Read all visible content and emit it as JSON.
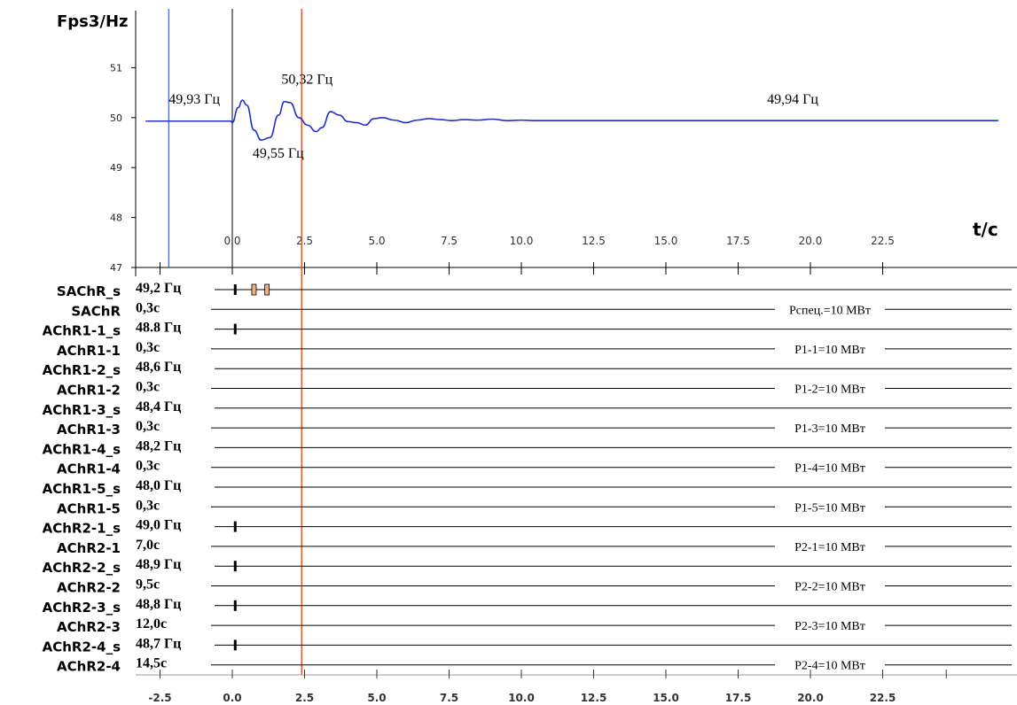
{
  "chart_data": {
    "type": "line",
    "title": "",
    "y_axis_title": "Fps3/Hz",
    "x_axis_title": "t/c",
    "ylim": [
      47,
      52
    ],
    "xlim": [
      -3.0,
      26.5
    ],
    "y_ticks": [
      "47",
      "48",
      "49",
      "50",
      "51"
    ],
    "x_ticks": [
      "-2.5",
      "0.0",
      "2.5",
      "5.0",
      "7.5",
      "10.0",
      "12.5",
      "15.0",
      "17.5",
      "20.0",
      "22.5"
    ],
    "x_tick_values": [
      -2.5,
      0,
      2.5,
      5,
      7.5,
      10,
      12.5,
      15,
      17.5,
      20,
      22.5
    ],
    "upper_tick_labels": [
      "0.0",
      "2.5",
      "5.0",
      "7.5",
      "10.0",
      "12.5",
      "15.0",
      "17.5",
      "20.0",
      "22.5"
    ],
    "grid": false,
    "legend": "none",
    "colors": {
      "series": "#1f2fd0",
      "marker_blue": "#3a5fe0",
      "marker_red": "#e05020",
      "marker_black": "#000000",
      "relay_box": "#f0b080"
    },
    "series": [
      {
        "x": [
          -3.0,
          -0.05,
          0.0,
          0.2,
          0.35,
          0.5,
          0.75,
          1.0,
          1.3,
          1.6,
          1.8,
          2.0,
          2.3,
          2.6,
          2.9,
          3.1,
          3.4,
          3.7,
          4.0,
          4.3,
          4.6,
          4.9,
          5.2,
          5.6,
          6.0,
          6.4,
          6.8,
          7.2,
          7.6,
          8.0,
          8.5,
          9.0,
          9.5,
          10.0,
          10.5,
          26.5
        ],
        "y": [
          49.93,
          49.93,
          49.9,
          50.2,
          50.35,
          50.25,
          49.75,
          49.55,
          49.6,
          50.05,
          50.32,
          50.3,
          50.0,
          49.85,
          49.72,
          49.8,
          50.12,
          50.05,
          49.92,
          49.9,
          49.85,
          49.98,
          50.0,
          49.95,
          49.9,
          49.95,
          49.98,
          49.96,
          49.94,
          49.96,
          49.95,
          49.97,
          49.94,
          49.95,
          49.94,
          49.94
        ]
      }
    ],
    "markers": {
      "blue_x": -2.2,
      "black_x": 0.0,
      "red_x": 2.4
    },
    "annotations": [
      {
        "text": "49,93 Гц",
        "x": -2.2,
        "y": 50.28
      },
      {
        "text": "50,32 Гц",
        "x": 1.7,
        "y": 50.68
      },
      {
        "text": "49,55 Гц",
        "x": 0.7,
        "y": 49.2
      },
      {
        "text": "49,94 Гц",
        "x": 18.5,
        "y": 50.28
      }
    ],
    "relay_rows": [
      {
        "name": "SAChR_s",
        "value": "49,2 Гц",
        "events": [
          0.1
        ],
        "boxes": [
          0.75,
          1.2
        ]
      },
      {
        "name": "SAChR",
        "value": "0,3с",
        "load": "Рспец.=10 МВт"
      },
      {
        "name": "AChR1-1_s",
        "value": "48.8 Гц",
        "events": [
          0.1
        ]
      },
      {
        "name": "AChR1-1",
        "value": "0,3с",
        "load": "Р1-1=10 МВт"
      },
      {
        "name": "AChR1-2_s",
        "value": "48,6 Гц",
        "events": []
      },
      {
        "name": "AChR1-2",
        "value": "0,3с",
        "load": "Р1-2=10 МВт"
      },
      {
        "name": "AChR1-3_s",
        "value": "48,4 Гц",
        "events": []
      },
      {
        "name": "AChR1-3",
        "value": "0,3с",
        "load": "Р1-3=10 МВт"
      },
      {
        "name": "AChR1-4_s",
        "value": "48,2 Гц",
        "events": []
      },
      {
        "name": "AChR1-4",
        "value": "0,3с",
        "load": "Р1-4=10 МВт"
      },
      {
        "name": "AChR1-5_s",
        "value": "48,0 Гц",
        "events": []
      },
      {
        "name": "AChR1-5",
        "value": "0,3с",
        "load": "Р1-5=10 МВт"
      },
      {
        "name": "AChR2-1_s",
        "value": "49,0 Гц",
        "events": [
          0.1
        ]
      },
      {
        "name": "AChR2-1",
        "value": "7,0с",
        "load": "Р2-1=10 МВт"
      },
      {
        "name": "AChR2-2_s",
        "value": "48,9 Гц",
        "events": [
          0.1
        ]
      },
      {
        "name": "AChR2-2",
        "value": "9,5с",
        "load": "Р2-2=10 МВт"
      },
      {
        "name": "AChR2-3_s",
        "value": "48,8 Гц",
        "events": [
          0.1
        ]
      },
      {
        "name": "AChR2-3",
        "value": "12,0с",
        "load": "Р2-3=10 МВт"
      },
      {
        "name": "AChR2-4_s",
        "value": "48,7 Гц",
        "events": [
          0.1
        ]
      },
      {
        "name": "AChR2-4",
        "value": "14,5с",
        "load": "Р2-4=10 МВт"
      }
    ]
  }
}
